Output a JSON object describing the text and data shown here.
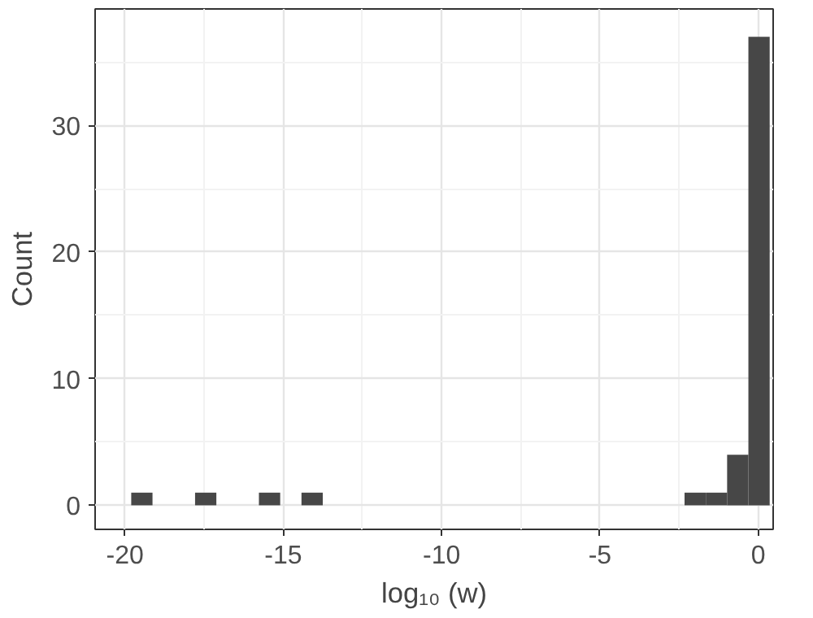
{
  "chart_data": {
    "type": "histogram",
    "xlabel": "log₁₀ (w)",
    "ylabel": "Count",
    "color": "#474747",
    "bins": [
      -19.8,
      -19.128,
      -18.456,
      -17.784,
      -17.112,
      -16.44,
      -15.768,
      -15.096,
      -14.424,
      -13.752,
      -13.08,
      -12.408,
      -11.736,
      -11.064,
      -10.392,
      -9.72,
      -9.048,
      -8.376,
      -7.704,
      -7.032,
      -6.36,
      -5.688,
      -5.016,
      -4.344,
      -3.672,
      -3.0,
      -2.328,
      -1.656,
      -0.984,
      -0.312,
      0.36
    ],
    "values": [
      1,
      0,
      0,
      1,
      0,
      0,
      1,
      0,
      1,
      0,
      0,
      0,
      0,
      0,
      0,
      0,
      0,
      0,
      0,
      0,
      0,
      0,
      0,
      0,
      0,
      0,
      1,
      1,
      4,
      37
    ],
    "xlim": [
      -20.94,
      0.47
    ],
    "ylim": [
      -1.9,
      39.2
    ],
    "xticks": [
      -20,
      -15,
      -10,
      -5,
      0
    ],
    "yticks": [
      0,
      10,
      20,
      30
    ],
    "grid": true
  }
}
